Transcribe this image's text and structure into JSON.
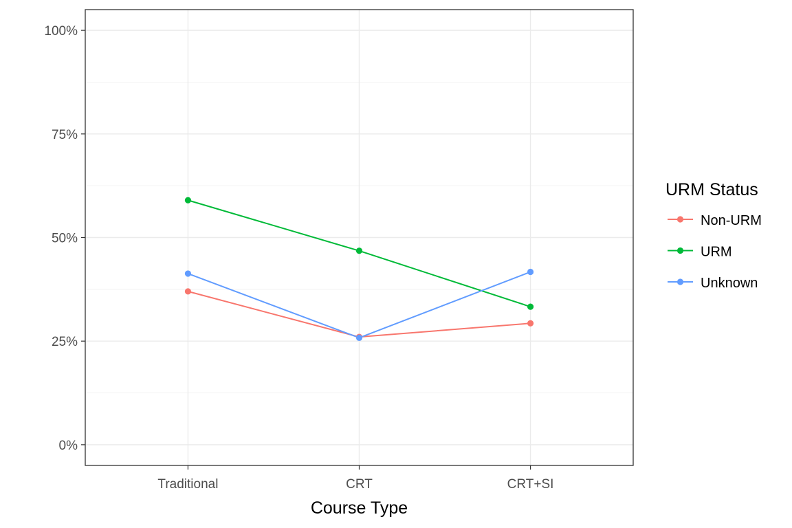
{
  "chart_data": {
    "type": "line",
    "xlabel": "Course Type",
    "ylabel": "",
    "categories": [
      "Traditional",
      "CRT",
      "CRT+SI"
    ],
    "ylim": [
      -0.05,
      1.05
    ],
    "y_ticks": [
      0,
      0.25,
      0.5,
      0.75,
      1.0
    ],
    "y_tick_labels": [
      "0%",
      "25%",
      "50%",
      "75%",
      "100%"
    ],
    "grid": true,
    "legend": {
      "title": "URM Status",
      "position": "right"
    },
    "series": [
      {
        "name": "Non-URM",
        "color": "#F8766D",
        "values": [
          0.37,
          0.26,
          0.293
        ]
      },
      {
        "name": "URM",
        "color": "#00BA38",
        "values": [
          0.59,
          0.468,
          0.333
        ]
      },
      {
        "name": "Unknown",
        "color": "#619CFF",
        "values": [
          0.413,
          0.258,
          0.417
        ]
      }
    ]
  }
}
